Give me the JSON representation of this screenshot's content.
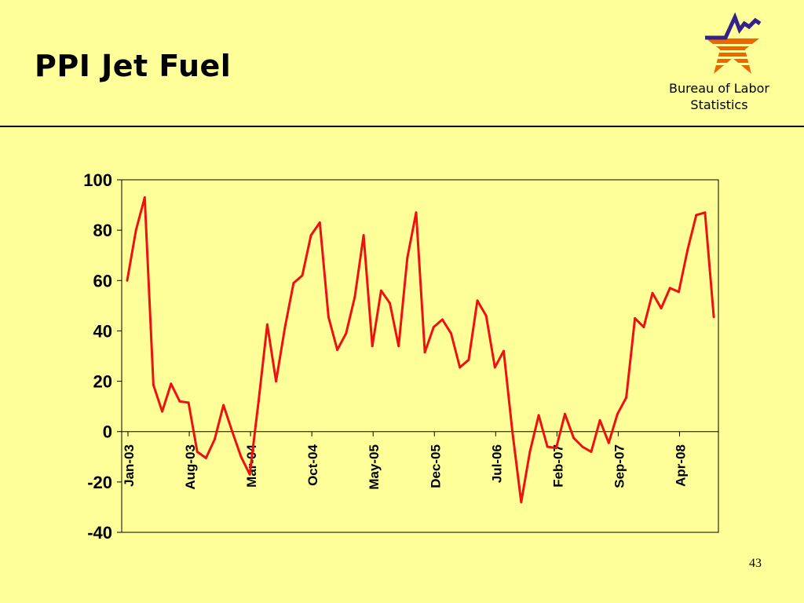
{
  "slide": {
    "title": "PPI Jet Fuel",
    "org_line1": "Bureau of Labor",
    "org_line2": "Statistics",
    "page_number": "43"
  },
  "colors": {
    "background": "#FFFF99",
    "series": "#EE1111",
    "logo_star": "#EE6600",
    "logo_stripes": "#FFFF99",
    "logo_line": "#332288"
  },
  "icons": {
    "logo": "bls-star-logo-icon"
  },
  "chart_data": {
    "type": "line",
    "title": "",
    "xlabel": "",
    "ylabel": "",
    "ylim": [
      -40,
      100
    ],
    "y_ticks": [
      100,
      80,
      60,
      40,
      20,
      0,
      -20,
      -40
    ],
    "x_tick_labels": [
      "Jan-03",
      "Aug-03",
      "Mar-04",
      "Oct-04",
      "May-05",
      "Dec-05",
      "Jul-06",
      "Feb-07",
      "Sep-07",
      "Apr-08"
    ],
    "x_tick_month_index": [
      0,
      7,
      14,
      21,
      28,
      35,
      42,
      49,
      56,
      63
    ],
    "grid": false,
    "legend": "none",
    "series": [
      {
        "x_start": "Jan-03",
        "values": [
          60,
          80,
          93,
          18.5,
          8,
          19,
          12,
          11.5,
          -8,
          -10.5,
          -3,
          10.5,
          0,
          -10,
          -17,
          12,
          42.5,
          20,
          41,
          59,
          62,
          78,
          83,
          45.5,
          32.5,
          39,
          53.5,
          78,
          34,
          56,
          51,
          34,
          69,
          87,
          31.5,
          41.5,
          44.5,
          39,
          25.5,
          28.5,
          52,
          46,
          25.5,
          32,
          0,
          -28,
          -8,
          6.5,
          -6,
          -6.5,
          7,
          -2.5,
          -6,
          -8,
          4.5,
          -4.5,
          7,
          13.5,
          45,
          41.5,
          55,
          49,
          57,
          55.5,
          72,
          86,
          87,
          45.5
        ]
      }
    ]
  }
}
